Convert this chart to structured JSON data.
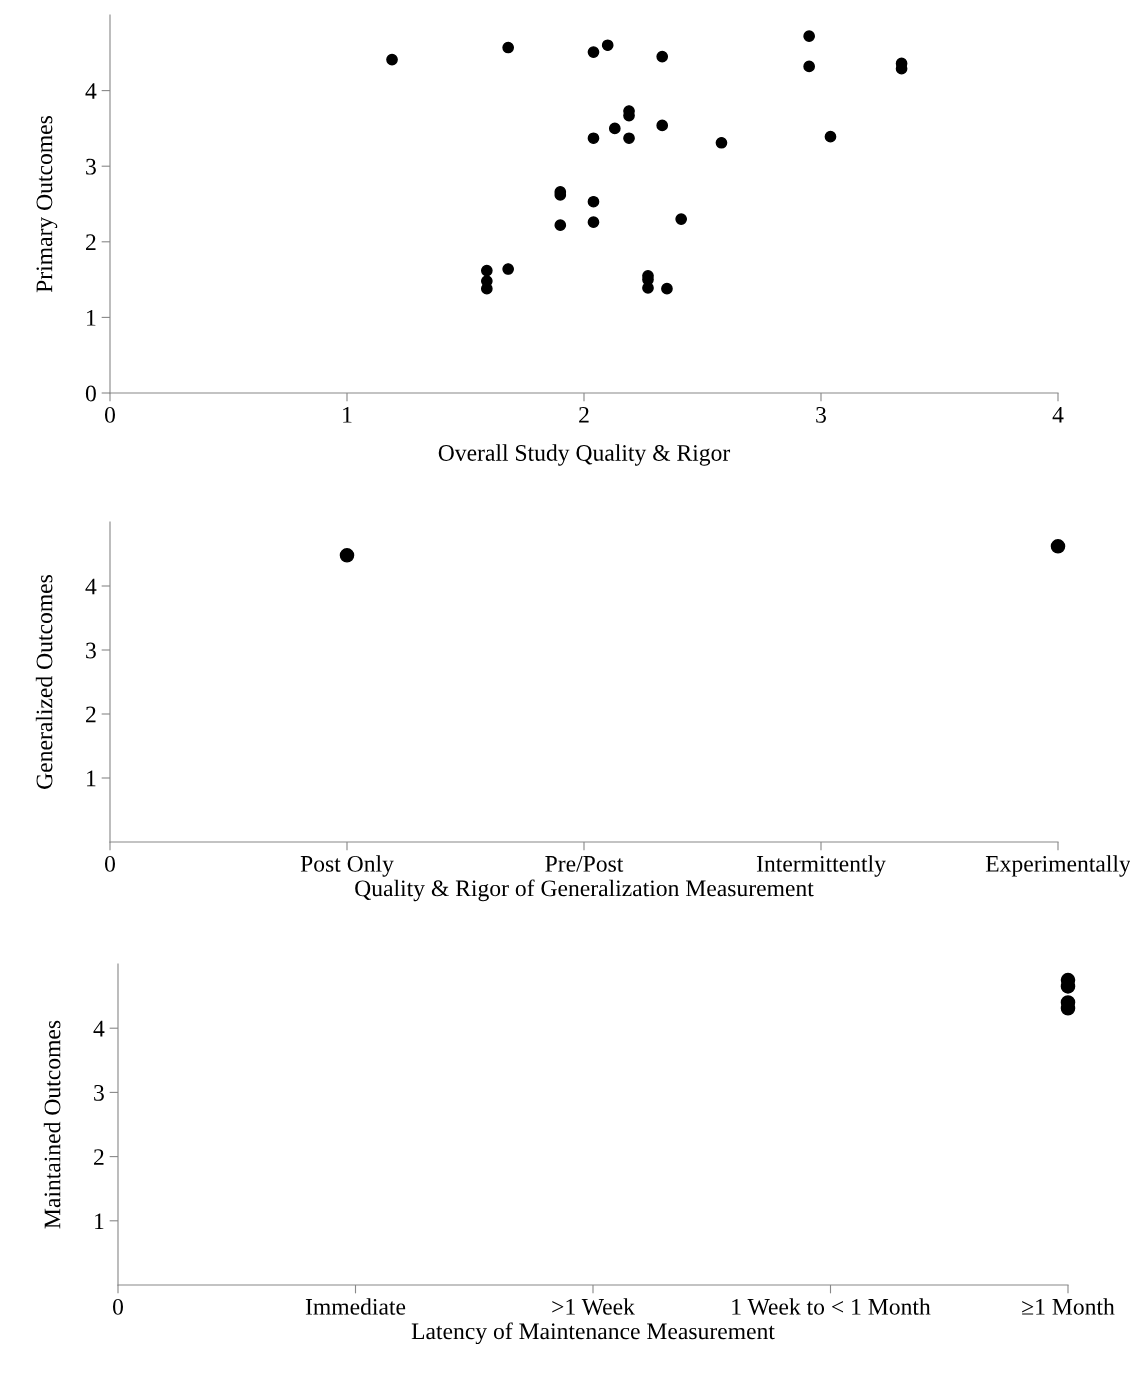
{
  "chart_data": [
    {
      "type": "scatter",
      "xlabel": "Overall Study Quality & Rigor",
      "ylabel": "Primary Outcomes",
      "color": "#000000",
      "marker": "circle",
      "grid": false,
      "x": [
        1.19,
        1.68,
        2.04,
        2.1,
        2.33,
        2.95,
        2.95,
        3.34,
        3.34,
        2.19,
        2.19,
        2.13,
        2.33,
        2.04,
        2.19,
        2.58,
        3.04,
        1.9,
        1.9,
        2.04,
        1.9,
        2.04,
        2.41,
        1.59,
        1.59,
        1.59,
        1.68,
        2.27,
        2.27,
        2.27,
        2.35
      ],
      "values": [
        4.41,
        4.57,
        4.51,
        4.6,
        4.45,
        4.72,
        4.32,
        4.36,
        4.29,
        3.73,
        3.67,
        3.5,
        3.54,
        3.37,
        3.37,
        3.31,
        3.39,
        2.66,
        2.62,
        2.53,
        2.22,
        2.26,
        2.3,
        1.62,
        1.48,
        1.38,
        1.64,
        1.55,
        1.5,
        1.39,
        1.38
      ],
      "xlim": [
        0,
        4
      ],
      "ylim": [
        0,
        5
      ],
      "xticks": [
        0,
        1,
        2,
        3,
        4
      ],
      "yticks": [
        0,
        1,
        2,
        3,
        4
      ]
    },
    {
      "type": "scatter",
      "xlabel": "Quality & Rigor of Generalization Measurement",
      "ylabel": "Generalized Outcomes",
      "color": "#000000",
      "marker": "circle",
      "grid": false,
      "categories": [
        "0",
        "Post Only",
        "Pre/Post",
        "Intermittently",
        "Experimentally"
      ],
      "values": [
        null,
        4.48,
        null,
        null,
        4.62
      ],
      "ylim": [
        0,
        5
      ],
      "yticks": [
        1,
        2,
        3,
        4
      ]
    },
    {
      "type": "scatter",
      "xlabel": "Latency of Maintenance Measurement",
      "ylabel": "Maintained Outcomes",
      "color": "#000000",
      "marker": "circle",
      "grid": false,
      "categories": [
        "0",
        "Immediate",
        ">1 Week",
        "1 Week to < 1 Month",
        "≥1 Month"
      ],
      "series": [
        {
          "values": [
            null,
            null,
            null,
            null,
            4.75
          ]
        },
        {
          "values": [
            null,
            null,
            null,
            null,
            4.65
          ]
        },
        {
          "values": [
            null,
            null,
            null,
            null,
            4.4
          ]
        },
        {
          "values": [
            null,
            null,
            null,
            null,
            4.31
          ]
        }
      ],
      "ylim": [
        0,
        5
      ],
      "yticks": [
        1,
        2,
        3,
        4
      ]
    }
  ]
}
